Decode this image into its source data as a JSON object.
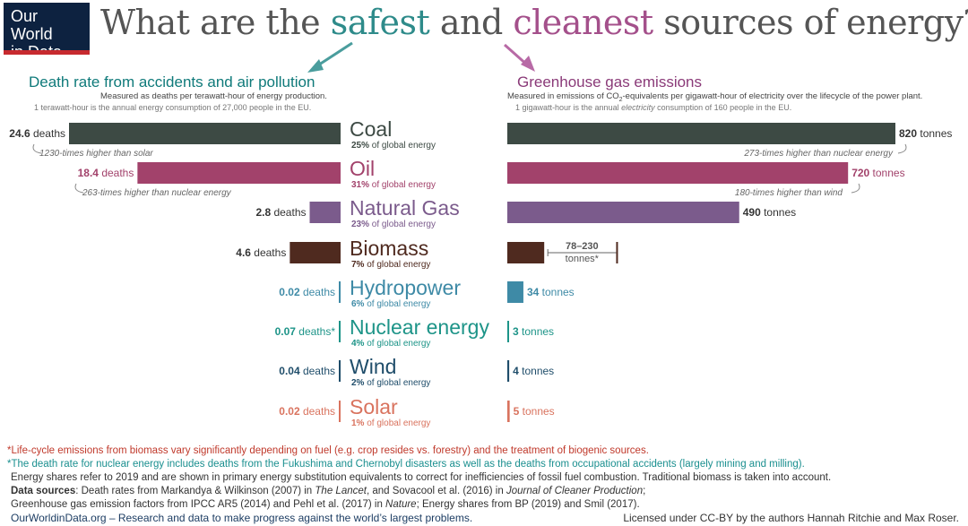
{
  "logo": {
    "line1": "Our World",
    "line2": "in Data"
  },
  "title": {
    "pre": "What are the ",
    "safest": "safest",
    "mid": " and ",
    "cleanest": "cleanest",
    "post": " sources of energy?"
  },
  "colors": {
    "coal": "#3d4a44",
    "oil": "#a2426b",
    "gas": "#7b5b8c",
    "biomass": "#4f2a1f",
    "hydro": "#3e8aa6",
    "nuclear": "#1d9488",
    "wind": "#1f4d6a",
    "solar": "#d9735e",
    "arrow_left": "#4a9d9d",
    "arrow_right": "#b86aa6"
  },
  "left_panel": {
    "title": "Death rate from accidents and air pollution",
    "subtitle": "Measured as deaths per terawatt-hour of energy production.",
    "note": "1 terawatt-hour is the annual energy consumption of 27,000 people in the EU."
  },
  "right_panel": {
    "title": "Greenhouse gas emissions",
    "subtitle_pre": "Measured in emissions of CO",
    "subtitle_sub": "2",
    "subtitle_post": "-equivalents per gigawatt-hour of electricity over the lifecycle of the power plant.",
    "note_pre": "1 gigawatt-hour is the annual ",
    "note_em": "electricity",
    "note_post": " consumption of 160 people in the EU."
  },
  "chart_data": {
    "type": "bar",
    "categories": [
      "Coal",
      "Oil",
      "Natural Gas",
      "Biomass",
      "Hydropower",
      "Nuclear energy",
      "Wind",
      "Solar"
    ],
    "shares": [
      "25%",
      "31%",
      "23%",
      "7%",
      "6%",
      "4%",
      "2%",
      "1%"
    ],
    "share_suffix": " of global energy",
    "series": [
      {
        "name": "Death rate from accidents and air pollution",
        "values": [
          24.6,
          18.4,
          2.8,
          4.6,
          0.02,
          0.07,
          0.04,
          0.02
        ],
        "labels": [
          "24.6",
          "18.4",
          "2.8",
          "4.6",
          "0.02",
          "0.07",
          "0.04",
          "0.02"
        ],
        "unit": " deaths"
      },
      {
        "name": "Greenhouse gas emissions",
        "values": [
          820,
          720,
          490,
          230,
          34,
          3,
          4,
          5
        ],
        "labels": [
          "820",
          "720",
          "490",
          "",
          "34",
          "3",
          "4",
          "5"
        ],
        "unit": " tonnes",
        "biomass_range": [
          78,
          230
        ],
        "biomass_label1": "78–230",
        "biomass_label2": "tonnes*"
      }
    ],
    "nuclear_asterisk": "*",
    "annotations": {
      "coal_left": "1230-times higher than solar",
      "oil_left": "263-times higher than nuclear energy",
      "coal_right": "273-times higher than nuclear energy",
      "oil_right": "180-times higher than wind"
    }
  },
  "footer": {
    "line1": "*Life-cycle emissions from biomass vary significantly depending on fuel (e.g. crop resides vs. forestry) and the treatment of biogenic sources.",
    "line2": "*The death rate for nuclear energy includes deaths from the Fukushima and Chernobyl disasters as well as the deaths from occupational accidents (largely mining and milling).",
    "line3": "Energy shares refer to 2019 and are shown in primary energy substitution equivalents to correct for inefficiencies of fossil fuel combustion. Traditional biomass is taken into account.",
    "line4_bold": "Data sources",
    "line4_a": ": Death rates from Markandya & Wilkinson (2007) in ",
    "line4_em1": "The Lancet",
    "line4_b": ", and Sovacool et al. (2016) in ",
    "line4_em2": "Journal of Cleaner Production",
    "line4_c": ";",
    "line5_a": "Greenhouse gas emission factors from IPCC AR5 (2014) and Pehl et al. (2017) in ",
    "line5_em": "Nature",
    "line5_b": "; Energy shares from BP (2019) and Smil (2017).",
    "line6": "OurWorldinData.org – Research and data to make progress against the world’s largest problems.",
    "license": "Licensed under CC-BY by the authors Hannah Ritchie and Max Roser."
  }
}
